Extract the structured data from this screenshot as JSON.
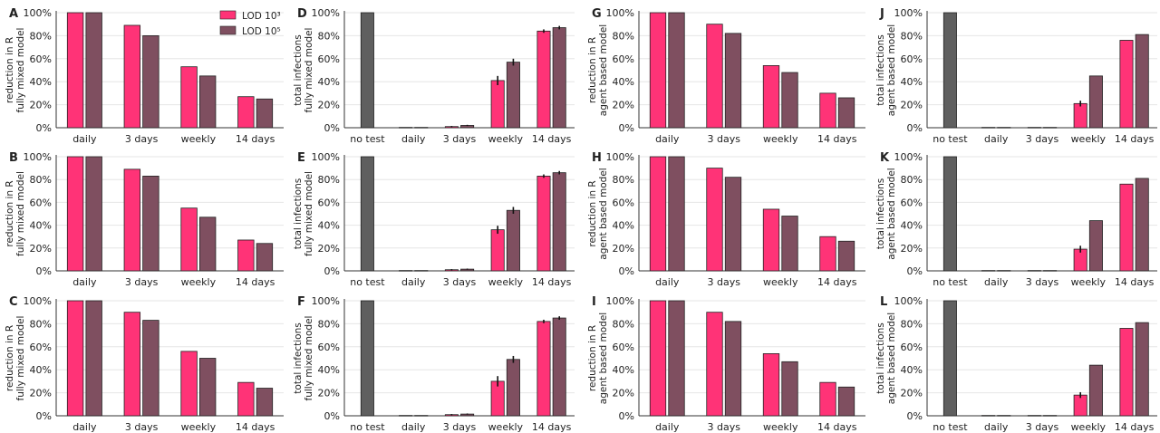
{
  "legend": {
    "items": [
      {
        "label": "LOD 10³",
        "color": "#ff3377"
      },
      {
        "label": "LOD 10⁵",
        "color": "#7f4f60"
      }
    ],
    "placement": "top-right of panel A"
  },
  "colors": {
    "no_test": "#5f5f5f",
    "lod3": "#ff3377",
    "lod5": "#7f4f60",
    "grid": "#e6e6e6",
    "axis": "#333333"
  },
  "chart_data": [
    {
      "panel": "A",
      "type": "bar",
      "ylabel": [
        "reduction in R",
        "fully mixed model"
      ],
      "ylim": [
        0,
        100
      ],
      "yticks": [
        "0%",
        "20%",
        "40%",
        "60%",
        "80%",
        "100%"
      ],
      "grid": true,
      "categories": [
        "daily",
        "3 days",
        "weekly",
        "14 days"
      ],
      "series": [
        {
          "name": "LOD 10³",
          "values": [
            100,
            89,
            53,
            27
          ]
        },
        {
          "name": "LOD 10⁵",
          "values": [
            100,
            80,
            45,
            25
          ]
        }
      ]
    },
    {
      "panel": "B",
      "type": "bar",
      "ylabel": [
        "reduction in R",
        "fully mixed model"
      ],
      "ylim": [
        0,
        100
      ],
      "yticks": [
        "0%",
        "20%",
        "40%",
        "60%",
        "80%",
        "100%"
      ],
      "grid": true,
      "categories": [
        "daily",
        "3 days",
        "weekly",
        "14 days"
      ],
      "series": [
        {
          "name": "LOD 10³",
          "values": [
            100,
            89,
            55,
            27
          ]
        },
        {
          "name": "LOD 10⁵",
          "values": [
            100,
            83,
            47,
            24
          ]
        }
      ]
    },
    {
      "panel": "C",
      "type": "bar",
      "ylabel": [
        "reduction in R",
        "fully mixed model"
      ],
      "ylim": [
        0,
        100
      ],
      "yticks": [
        "0%",
        "20%",
        "40%",
        "60%",
        "80%",
        "100%"
      ],
      "grid": true,
      "categories": [
        "daily",
        "3 days",
        "weekly",
        "14 days"
      ],
      "series": [
        {
          "name": "LOD 10³",
          "values": [
            100,
            90,
            56,
            29
          ]
        },
        {
          "name": "LOD 10⁵",
          "values": [
            100,
            83,
            50,
            24
          ]
        }
      ]
    },
    {
      "panel": "D",
      "type": "bar",
      "ylabel": [
        "total infections",
        "fully mixed model"
      ],
      "ylim": [
        0,
        100
      ],
      "yticks": [
        "0%",
        "20%",
        "40%",
        "60%",
        "80%",
        "100%"
      ],
      "grid": true,
      "categories": [
        "no test",
        "daily",
        "3 days",
        "weekly",
        "14 days"
      ],
      "no_test_value": 100,
      "series": [
        {
          "name": "LOD 10³",
          "values": [
            null,
            0.3,
            1,
            41,
            84
          ],
          "errors": [
            null,
            0,
            0.5,
            4,
            1.5
          ]
        },
        {
          "name": "LOD 10⁵",
          "values": [
            null,
            0.3,
            2,
            57,
            87
          ],
          "errors": [
            null,
            0,
            0.5,
            3,
            1.5
          ]
        }
      ]
    },
    {
      "panel": "E",
      "type": "bar",
      "ylabel": [
        "total infections",
        "fully mixed model"
      ],
      "ylim": [
        0,
        100
      ],
      "yticks": [
        "0%",
        "20%",
        "40%",
        "60%",
        "80%",
        "100%"
      ],
      "grid": true,
      "categories": [
        "no test",
        "daily",
        "3 days",
        "weekly",
        "14 days"
      ],
      "no_test_value": 100,
      "series": [
        {
          "name": "LOD 10³",
          "values": [
            null,
            0.3,
            1,
            36,
            83
          ],
          "errors": [
            null,
            0,
            0.5,
            3.5,
            1.5
          ]
        },
        {
          "name": "LOD 10⁵",
          "values": [
            null,
            0.3,
            1.5,
            53,
            86
          ],
          "errors": [
            null,
            0,
            0.5,
            3,
            1.5
          ]
        }
      ]
    },
    {
      "panel": "F",
      "type": "bar",
      "ylabel": [
        "total infections",
        "fully mixed model"
      ],
      "ylim": [
        0,
        100
      ],
      "yticks": [
        "0%",
        "20%",
        "40%",
        "60%",
        "80%",
        "100%"
      ],
      "grid": true,
      "categories": [
        "no test",
        "daily",
        "3 days",
        "weekly",
        "14 days"
      ],
      "no_test_value": 100,
      "series": [
        {
          "name": "LOD 10³",
          "values": [
            null,
            0.3,
            1,
            30,
            82
          ],
          "errors": [
            null,
            0,
            0.5,
            4.5,
            1.5
          ]
        },
        {
          "name": "LOD 10⁵",
          "values": [
            null,
            0.3,
            1.5,
            49,
            85
          ],
          "errors": [
            null,
            0,
            0.5,
            3,
            1.5
          ]
        }
      ]
    },
    {
      "panel": "G",
      "type": "bar",
      "ylabel": [
        "reduction in R",
        "agent based model"
      ],
      "ylim": [
        0,
        100
      ],
      "yticks": [
        "0%",
        "20%",
        "40%",
        "60%",
        "80%",
        "100%"
      ],
      "grid": true,
      "categories": [
        "daily",
        "3 days",
        "weekly",
        "14 days"
      ],
      "series": [
        {
          "name": "LOD 10³",
          "values": [
            100,
            90,
            54,
            30
          ]
        },
        {
          "name": "LOD 10⁵",
          "values": [
            100,
            82,
            48,
            26
          ]
        }
      ]
    },
    {
      "panel": "H",
      "type": "bar",
      "ylabel": [
        "reduction in R",
        "agent based model"
      ],
      "ylim": [
        0,
        100
      ],
      "yticks": [
        "0%",
        "20%",
        "40%",
        "60%",
        "80%",
        "100%"
      ],
      "grid": true,
      "categories": [
        "daily",
        "3 days",
        "weekly",
        "14 days"
      ],
      "series": [
        {
          "name": "LOD 10³",
          "values": [
            100,
            90,
            54,
            30
          ]
        },
        {
          "name": "LOD 10⁵",
          "values": [
            100,
            82,
            48,
            26
          ]
        }
      ]
    },
    {
      "panel": "I",
      "type": "bar",
      "ylabel": [
        "reduction in R",
        "agent based model"
      ],
      "ylim": [
        0,
        100
      ],
      "yticks": [
        "0%",
        "20%",
        "40%",
        "60%",
        "80%",
        "100%"
      ],
      "grid": true,
      "categories": [
        "daily",
        "3 days",
        "weekly",
        "14 days"
      ],
      "series": [
        {
          "name": "LOD 10³",
          "values": [
            100,
            90,
            54,
            29
          ]
        },
        {
          "name": "LOD 10⁵",
          "values": [
            100,
            82,
            47,
            25
          ]
        }
      ]
    },
    {
      "panel": "J",
      "type": "bar",
      "ylabel": [
        "total infections",
        "agent based model"
      ],
      "ylim": [
        0,
        100
      ],
      "yticks": [
        "0%",
        "20%",
        "40%",
        "60%",
        "80%",
        "100%"
      ],
      "grid": true,
      "categories": [
        "no test",
        "daily",
        "3 days",
        "weekly",
        "14 days"
      ],
      "no_test_value": 100,
      "series": [
        {
          "name": "LOD 10³",
          "values": [
            null,
            0.3,
            0.3,
            21,
            76
          ],
          "errors": [
            null,
            0,
            0,
            2.5,
            0
          ]
        },
        {
          "name": "LOD 10⁵",
          "values": [
            null,
            0.3,
            0.3,
            45,
            81
          ],
          "errors": [
            null,
            0,
            0,
            0,
            0
          ]
        }
      ]
    },
    {
      "panel": "K",
      "type": "bar",
      "ylabel": [
        "total infections",
        "agent based model"
      ],
      "ylim": [
        0,
        100
      ],
      "yticks": [
        "0%",
        "20%",
        "40%",
        "60%",
        "80%",
        "100%"
      ],
      "grid": true,
      "categories": [
        "no test",
        "daily",
        "3 days",
        "weekly",
        "14 days"
      ],
      "no_test_value": 100,
      "series": [
        {
          "name": "LOD 10³",
          "values": [
            null,
            0.3,
            0.3,
            19,
            76
          ],
          "errors": [
            null,
            0,
            0,
            3,
            0
          ]
        },
        {
          "name": "LOD 10⁵",
          "values": [
            null,
            0.3,
            0.3,
            44,
            81
          ],
          "errors": [
            null,
            0,
            0,
            0,
            0
          ]
        }
      ]
    },
    {
      "panel": "L",
      "type": "bar",
      "ylabel": [
        "total infections",
        "agent based model"
      ],
      "ylim": [
        0,
        100
      ],
      "yticks": [
        "0%",
        "20%",
        "40%",
        "60%",
        "80%",
        "100%"
      ],
      "grid": true,
      "categories": [
        "no test",
        "daily",
        "3 days",
        "weekly",
        "14 days"
      ],
      "no_test_value": 100,
      "series": [
        {
          "name": "LOD 10³",
          "values": [
            null,
            0.3,
            0.3,
            18,
            76
          ],
          "errors": [
            null,
            0,
            0,
            2.5,
            0
          ]
        },
        {
          "name": "LOD 10⁵",
          "values": [
            null,
            0.3,
            0.3,
            44,
            81
          ],
          "errors": [
            null,
            0,
            0,
            0,
            0
          ]
        }
      ]
    }
  ]
}
